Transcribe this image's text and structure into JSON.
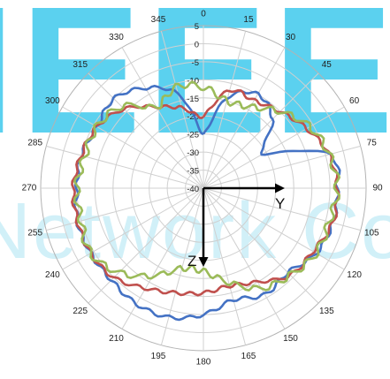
{
  "watermark": {
    "line1": "IEEE",
    "line2": "Network Compon",
    "color_upper": "#29c3ea",
    "color_lower": "#8fdcef"
  },
  "chart_data": {
    "type": "polar",
    "angle_unit": "degrees",
    "angle_direction": "clockwise",
    "angle_zero": "top",
    "angle_ticks": [
      0,
      15,
      30,
      45,
      60,
      75,
      90,
      105,
      120,
      135,
      150,
      165,
      180,
      195,
      210,
      225,
      240,
      255,
      270,
      285,
      300,
      315,
      330,
      345
    ],
    "angle_tick_labels": [
      "0",
      "15",
      "30",
      "45",
      "60",
      "75",
      "90",
      "105",
      "120",
      "135",
      "150",
      "165",
      "180",
      "195",
      "210",
      "225",
      "240",
      "255",
      "270",
      "285",
      "300",
      "315",
      "330",
      "345"
    ],
    "radial_range": [
      -40,
      5
    ],
    "radial_ticks": [
      5,
      0,
      -5,
      -10,
      -15,
      -20,
      -25,
      -30,
      -35,
      -40
    ],
    "radial_tick_labels": [
      "5",
      "0",
      "-5",
      "-10",
      "-15",
      "-20",
      "-25",
      "-30",
      "-35",
      "-40"
    ],
    "grid": true,
    "theta": [
      0,
      15,
      30,
      45,
      60,
      75,
      90,
      105,
      120,
      135,
      150,
      165,
      180,
      195,
      210,
      225,
      240,
      255,
      270,
      285,
      300,
      315,
      330,
      345,
      360
    ],
    "series": [
      {
        "color": "#4472c4",
        "values": [
          -25,
          -14,
          -10,
          -13,
          -21,
          -4,
          -3,
          -3,
          -4,
          -7,
          -6,
          -8,
          -5,
          -3,
          -3,
          -4,
          -4,
          -4,
          -5,
          -5,
          -6,
          -5,
          -8,
          -13,
          -25
        ]
      },
      {
        "color": "#c0504d",
        "values": [
          -20,
          -12,
          -12,
          -10,
          -7,
          -4,
          -3,
          -3,
          -5,
          -6,
          -10,
          -12,
          -11,
          -10,
          -8,
          -5,
          -4,
          -4,
          -4,
          -5,
          -6,
          -9,
          -14,
          -17,
          -20
        ]
      },
      {
        "color": "#9bbb59",
        "values": [
          -12,
          -15,
          -14,
          -10,
          -6,
          -4,
          -3,
          -4,
          -4,
          -6,
          -8,
          -13,
          -17,
          -17,
          -12,
          -7,
          -4,
          -5,
          -5,
          -6,
          -6,
          -8,
          -14,
          -11,
          -12
        ]
      }
    ],
    "annotations": [
      {
        "text": "Y",
        "direction_deg": 90
      },
      {
        "text": "Z",
        "direction_deg": 180
      }
    ]
  }
}
